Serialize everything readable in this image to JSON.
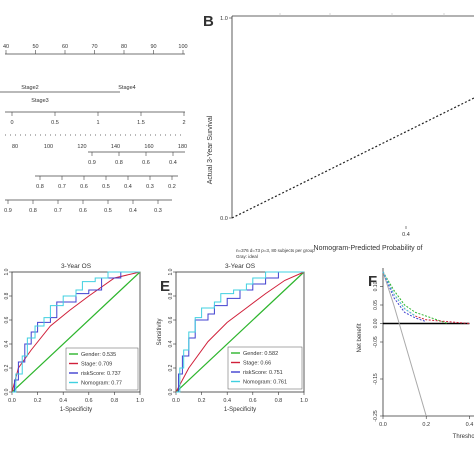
{
  "panels": {
    "B_label": "B",
    "E_label": "E",
    "F_label": "F"
  },
  "nomogram": {
    "top_ticks": [
      "40",
      "50",
      "60",
      "70",
      "80",
      "90",
      "100"
    ],
    "stage_labels": [
      "Stage2",
      "Stage4",
      "Stage3"
    ],
    "risk_ticks": [
      "0",
      "0.5",
      "1",
      "1.5",
      "2"
    ],
    "points_ticks": [
      "80",
      "100",
      "120",
      "140",
      "160",
      "180"
    ],
    "prob1_ticks": [
      "0.9",
      "0.8",
      "0.6",
      "0.4"
    ],
    "prob2_ticks": [
      "0.8",
      "0.7",
      "0.6",
      "0.5",
      "0.4",
      "0.3",
      "0.2"
    ],
    "prob3_ticks": [
      "0.9",
      "0.8",
      "0.7",
      "0.6",
      "0.5",
      "0.4",
      "0.3"
    ]
  },
  "calibration": {
    "ylabel": "Actual 3-Year Survival",
    "xlabel": "Nomogram-Predicted Probability of",
    "y_ticks": [
      "0.0",
      "0.2",
      "0.4",
      "0.6",
      "0.8",
      "1.0"
    ],
    "x_ticks": [
      "0.4"
    ],
    "note1": "n=376 d=73 p=3, 80 subjects per group",
    "note2": "Gray: ideal"
  },
  "chart_data": [
    {
      "type": "line",
      "title": "3-Year OS",
      "xlabel": "1-Specificity",
      "ylabel": "",
      "xlim": [
        0,
        1
      ],
      "ylim": [
        0,
        1
      ],
      "x_ticks": [
        "0.0",
        "0.2",
        "0.4",
        "0.6",
        "0.8",
        "1.0"
      ],
      "y_ticks": [
        "0.0",
        "0.2",
        "0.4",
        "0.6",
        "0.8",
        "1.0"
      ],
      "legend_placement": "bottom-right",
      "series": [
        {
          "name": "Gender: 0.535",
          "color": "#2db52d",
          "x": [
            0,
            1
          ],
          "y": [
            0,
            1
          ]
        },
        {
          "name": "Stage: 0.709",
          "color": "#d0203a",
          "x": [
            0,
            0.05,
            0.15,
            0.3,
            0.45,
            0.6,
            0.8,
            1.0
          ],
          "y": [
            0,
            0.2,
            0.35,
            0.55,
            0.68,
            0.8,
            0.95,
            1.0
          ]
        },
        {
          "name": "riskScore: 0.737",
          "color": "#4040d0",
          "x": [
            0,
            0.02,
            0.05,
            0.1,
            0.15,
            0.2,
            0.3,
            0.35,
            0.45,
            0.5,
            0.6,
            0.7,
            0.85,
            1.0
          ],
          "y": [
            0,
            0.1,
            0.25,
            0.4,
            0.5,
            0.58,
            0.62,
            0.75,
            0.75,
            0.82,
            0.85,
            0.95,
            1.0,
            1.0
          ]
        },
        {
          "name": "Nomogram: 0.77",
          "color": "#40d0e0",
          "x": [
            0,
            0.03,
            0.08,
            0.12,
            0.18,
            0.25,
            0.3,
            0.4,
            0.5,
            0.55,
            0.65,
            0.75,
            0.9,
            1.0
          ],
          "y": [
            0,
            0.15,
            0.3,
            0.45,
            0.55,
            0.62,
            0.72,
            0.8,
            0.85,
            0.92,
            0.95,
            1.0,
            1.0,
            1.0
          ]
        }
      ]
    },
    {
      "type": "line",
      "title": "3-Year OS",
      "xlabel": "1-Specificity",
      "ylabel": "Sensitivity",
      "xlim": [
        0,
        1
      ],
      "ylim": [
        0,
        1
      ],
      "x_ticks": [
        "0.0",
        "0.2",
        "0.4",
        "0.6",
        "0.8",
        "1.0"
      ],
      "y_ticks": [
        "0.0",
        "0.2",
        "0.4",
        "0.6",
        "0.8",
        "1.0"
      ],
      "legend_placement": "bottom-right",
      "series": [
        {
          "name": "Gender: 0.582",
          "color": "#2db52d",
          "x": [
            0,
            1
          ],
          "y": [
            0,
            1
          ]
        },
        {
          "name": "Stage: 0.66",
          "color": "#d0203a",
          "x": [
            0,
            0.1,
            0.25,
            0.4,
            0.55,
            0.7,
            0.85,
            1.0
          ],
          "y": [
            0,
            0.2,
            0.42,
            0.58,
            0.7,
            0.82,
            0.93,
            1.0
          ]
        },
        {
          "name": "riskScore: 0.751",
          "color": "#4040d0",
          "x": [
            0,
            0.02,
            0.05,
            0.1,
            0.15,
            0.25,
            0.3,
            0.4,
            0.5,
            0.6,
            0.7,
            0.8,
            1.0
          ],
          "y": [
            0,
            0.15,
            0.3,
            0.45,
            0.6,
            0.65,
            0.72,
            0.78,
            0.85,
            0.9,
            0.95,
            1.0,
            1.0
          ]
        },
        {
          "name": "Nomogram: 0.761",
          "color": "#40d0e0",
          "x": [
            0,
            0.03,
            0.06,
            0.1,
            0.15,
            0.2,
            0.3,
            0.35,
            0.45,
            0.55,
            0.6,
            0.7,
            0.8,
            1.0
          ],
          "y": [
            0,
            0.2,
            0.35,
            0.5,
            0.62,
            0.7,
            0.75,
            0.82,
            0.85,
            0.9,
            0.95,
            1.0,
            1.0,
            1.0
          ]
        }
      ]
    },
    {
      "type": "line",
      "title": "",
      "xlabel": "Threshold",
      "ylabel": "Net benefit",
      "xlim": [
        0,
        0.4
      ],
      "ylim": [
        -0.25,
        0.15
      ],
      "x_ticks": [
        "0.0",
        "0.2",
        "0.4"
      ],
      "y_ticks": [
        "0.10",
        "0.05",
        "0.00",
        "-0.05",
        "-0.15",
        "-0.25"
      ],
      "series": [
        {
          "name": "",
          "color": "#000000",
          "x": [
            0,
            0.4
          ],
          "y": [
            0,
            0
          ]
        },
        {
          "name": "",
          "color": "#aaaaaa",
          "x": [
            0,
            0.05,
            0.1,
            0.15,
            0.2
          ],
          "y": [
            0.14,
            0.05,
            -0.05,
            -0.15,
            -0.25
          ]
        },
        {
          "name": "",
          "color": "#2db52d",
          "x": [
            0,
            0.05,
            0.1,
            0.15,
            0.2,
            0.25,
            0.3
          ],
          "y": [
            0.14,
            0.09,
            0.05,
            0.03,
            0.02,
            0.01,
            0.0
          ]
        },
        {
          "name": "",
          "color": "#d0203a",
          "x": [
            0,
            0.05,
            0.1,
            0.15,
            0.2,
            0.3,
            0.4
          ],
          "y": [
            0.14,
            0.08,
            0.04,
            0.02,
            0.01,
            0.005,
            0.0
          ]
        },
        {
          "name": "",
          "color": "#4040d0",
          "x": [
            0,
            0.05,
            0.1,
            0.15,
            0.2
          ],
          "y": [
            0.14,
            0.07,
            0.03,
            0.015,
            0.005
          ]
        },
        {
          "name": "",
          "color": "#40d0e0",
          "x": [
            0,
            0.05,
            0.1,
            0.15
          ],
          "y": [
            0.14,
            0.08,
            0.04,
            0.02
          ]
        }
      ]
    }
  ]
}
